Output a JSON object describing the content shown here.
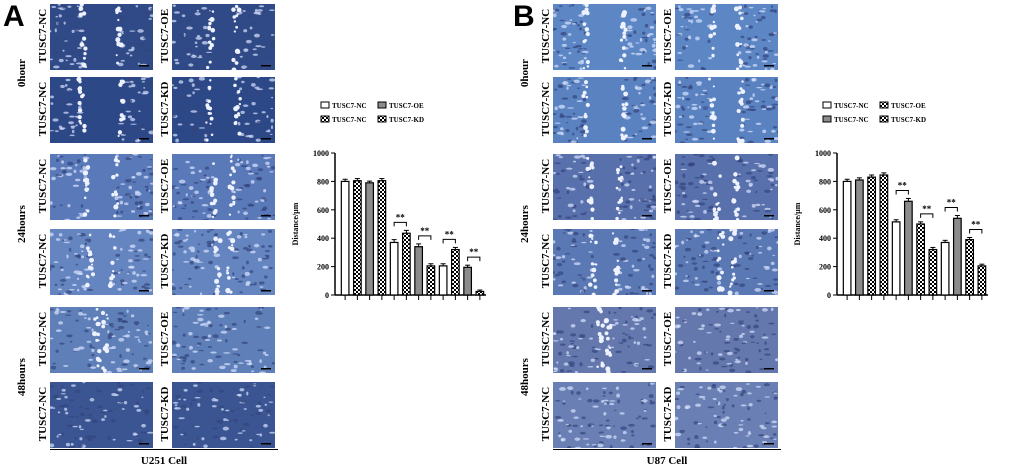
{
  "panels": [
    {
      "letter": "A",
      "cell_line": "U251 Cell",
      "time_labels": [
        "0hour",
        "24hours",
        "48hours"
      ],
      "image_labels": [
        [
          "TUSC7-NC",
          "TUSC7-OE"
        ],
        [
          "TUSC7-NC",
          "TUSC7-KD"
        ],
        [
          "TUSC7-NC",
          "TUSC7-OE"
        ],
        [
          "TUSC7-NC",
          "TUSC7-KD"
        ],
        [
          "TUSC7-NC",
          "TUSC7-OE"
        ],
        [
          "TUSC7-NC",
          "TUSC7-KD"
        ]
      ],
      "chart_data": {
        "type": "bar",
        "ylabel": "Distance/μm",
        "ylim": [
          0,
          1000
        ],
        "yticks": [
          0,
          200,
          400,
          600,
          800,
          1000
        ],
        "legend": [
          "TUSC7-NC",
          "TUSC7-NC",
          "TUSC7-OE",
          "TUSC7-KD"
        ],
        "series_fill": [
          "white",
          "checker",
          "gray",
          "checker"
        ],
        "values": [
          800,
          805,
          790,
          805,
          370,
          435,
          340,
          205,
          205,
          320,
          195,
          25
        ],
        "errors": [
          15,
          15,
          12,
          15,
          20,
          20,
          20,
          15,
          15,
          15,
          15,
          10
        ],
        "significance": [
          {
            "from": 4,
            "to": 5,
            "label": "**"
          },
          {
            "from": 6,
            "to": 7,
            "label": "**"
          },
          {
            "from": 8,
            "to": 9,
            "label": "**"
          },
          {
            "from": 10,
            "to": 11,
            "label": "**"
          }
        ]
      }
    },
    {
      "letter": "B",
      "cell_line": "U87 Cell",
      "time_labels": [
        "0hour",
        "24hours",
        "48hours"
      ],
      "image_labels": [
        [
          "TUSC7-NC",
          "TUSC7-OE"
        ],
        [
          "TUSC7-NC",
          "TUSC7-KD"
        ],
        [
          "TUSC7-NC",
          "TUSC7-OE"
        ],
        [
          "TUSC7-NC",
          "TUSC7-KD"
        ],
        [
          "TUSC7-NC",
          "TUSC7-OE"
        ],
        [
          "TUSC7-NC",
          "TUSC7-KD"
        ]
      ],
      "chart_data": {
        "type": "bar",
        "ylabel": "Distance/μm",
        "ylim": [
          0,
          1000
        ],
        "yticks": [
          0,
          200,
          400,
          600,
          800,
          1000
        ],
        "legend": [
          "TUSC7-NC",
          "TUSC7-NC",
          "TUSC7-OE",
          "TUSC7-KD"
        ],
        "series_fill": [
          "white",
          "gray",
          "checker",
          "checker"
        ],
        "values": [
          800,
          810,
          830,
          845,
          515,
          660,
          500,
          320,
          370,
          540,
          390,
          205
        ],
        "errors": [
          15,
          15,
          15,
          15,
          15,
          20,
          15,
          15,
          15,
          20,
          15,
          12
        ],
        "significance": [
          {
            "from": 4,
            "to": 5,
            "label": "**"
          },
          {
            "from": 6,
            "to": 7,
            "label": "**"
          },
          {
            "from": 8,
            "to": 9,
            "label": "**"
          },
          {
            "from": 10,
            "to": 11,
            "label": "**"
          }
        ]
      }
    }
  ]
}
